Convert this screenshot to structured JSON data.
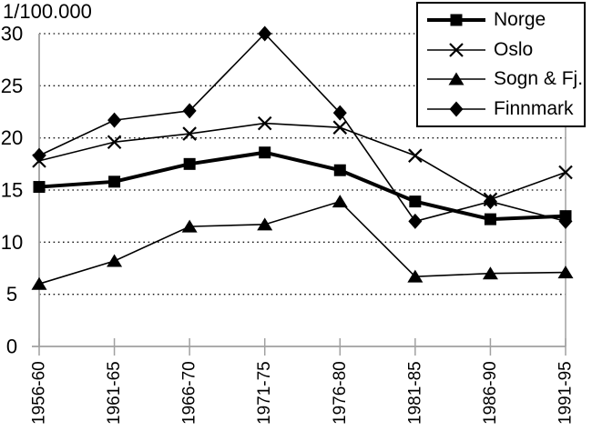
{
  "chart_data": {
    "type": "line",
    "title": "1/100.000",
    "categories": [
      "1956-60",
      "1961-65",
      "1966-70",
      "1971-75",
      "1976-80",
      "1981-85",
      "1986-90",
      "1991-95"
    ],
    "series": [
      {
        "name": "Norge",
        "marker": "square",
        "line_width": 4,
        "values": [
          15.3,
          15.8,
          17.5,
          18.6,
          16.9,
          13.9,
          12.2,
          12.5
        ]
      },
      {
        "name": "Oslo",
        "marker": "x",
        "line_width": 1.6,
        "values": [
          17.8,
          19.6,
          20.4,
          21.4,
          21.0,
          18.3,
          14.1,
          16.7
        ]
      },
      {
        "name": "Sogn & Fj.",
        "marker": "triangle",
        "line_width": 1.6,
        "values": [
          6.0,
          8.2,
          11.5,
          11.7,
          13.9,
          6.7,
          7.0,
          7.1
        ]
      },
      {
        "name": "Finnmark",
        "marker": "diamond",
        "line_width": 1.6,
        "values": [
          18.3,
          21.7,
          22.6,
          30.0,
          22.4,
          12.0,
          13.9,
          12.0
        ]
      }
    ],
    "ylim": [
      0,
      30
    ],
    "yticks": [
      0,
      5,
      10,
      15,
      20,
      25,
      30
    ],
    "x_label_rotation": -90,
    "grid": "horizontal-dotted",
    "legend_position": "top-right",
    "colors": {
      "series": "#000000",
      "axis": "#a1a1a1",
      "grid_dots": "#111111",
      "text": "#000000",
      "background": "#ffffff"
    }
  }
}
